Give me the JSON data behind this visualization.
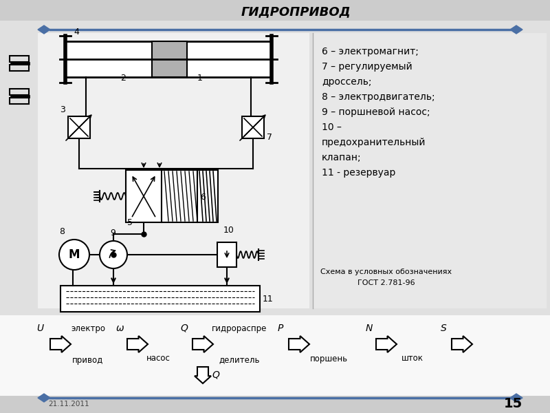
{
  "title": "ГИДРОПРИВОД",
  "bg_top": "#d4d4d4",
  "bg_main": "#e8e8e8",
  "bg_bottom": "#ffffff",
  "bg_footer": "#d4d4d4",
  "line_color": "#4a6fa5",
  "text_color": "#000000",
  "right_text_lines": [
    "6 – электромагнит;",
    "7 – регулируемый",
    "дроссель;",
    "8 – электродвигатель;",
    "9 – поршневой насос;",
    "10 –",
    "предохранительный",
    "клапан;",
    "11 - резервуар"
  ],
  "bottom_note_line1": "Схема в условных обозначениях",
  "bottom_note_line2": "ГОСТ 2.781-96",
  "page_num": "15",
  "date_text": "21.11.2011"
}
